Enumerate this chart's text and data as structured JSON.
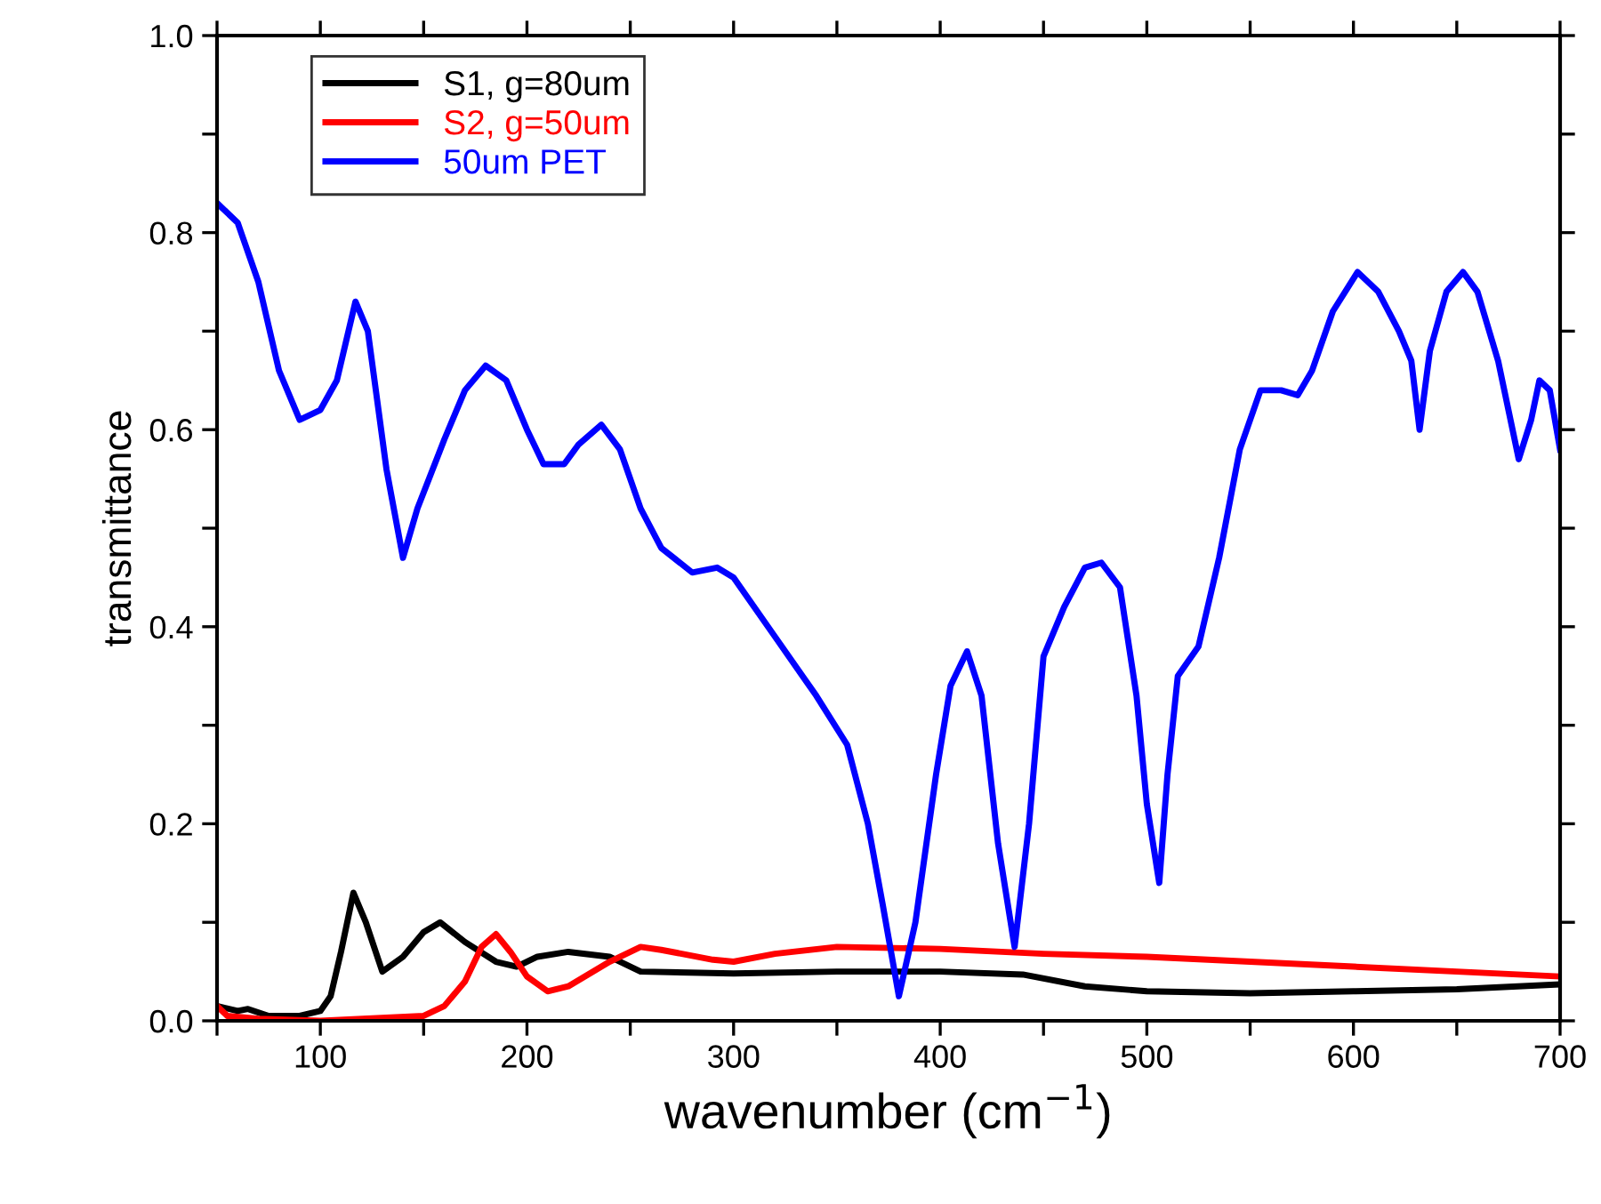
{
  "chart_data": {
    "type": "line",
    "xlabel": "wavenumber (cm$^{−1}$)",
    "ylabel": "transmittance",
    "xlim": [
      50,
      700
    ],
    "ylim": [
      0,
      1.0
    ],
    "xticks": [
      {
        "value": 50,
        "label": null
      },
      100,
      {
        "value": 150,
        "label": null
      },
      200,
      {
        "value": 250,
        "label": null
      },
      300,
      {
        "value": 350,
        "label": null
      },
      400,
      {
        "value": 450,
        "label": null
      },
      500,
      {
        "value": 550,
        "label": null
      },
      600,
      {
        "value": 650,
        "label": null
      },
      700
    ],
    "yticks": [
      {
        "value": 0,
        "label": "0.0"
      },
      {
        "value": 0.1,
        "label": null
      },
      0.2,
      {
        "value": 0.3,
        "label": null
      },
      0.4,
      {
        "value": 0.5,
        "label": null
      },
      0.6,
      {
        "value": 0.7,
        "label": null
      },
      0.8,
      {
        "value": 0.9,
        "label": null
      },
      {
        "value": 1.0,
        "label": "1.0"
      }
    ],
    "grid": false,
    "legend": "top left",
    "marker": "none",
    "line_style": "solid",
    "series": [
      {
        "name": "S1, g=80um",
        "color": "#000000",
        "x": [
          50,
          60,
          65,
          75,
          90,
          100,
          105,
          110,
          116,
          122,
          130,
          140,
          150,
          158,
          170,
          185,
          195,
          205,
          220,
          240,
          255,
          300,
          350,
          400,
          440,
          470,
          500,
          550,
          600,
          650,
          700
        ],
        "values": [
          0.015,
          0.01,
          0.012,
          0.005,
          0.005,
          0.01,
          0.025,
          0.07,
          0.13,
          0.1,
          0.05,
          0.065,
          0.09,
          0.1,
          0.08,
          0.06,
          0.055,
          0.065,
          0.07,
          0.065,
          0.05,
          0.048,
          0.05,
          0.05,
          0.047,
          0.035,
          0.03,
          0.028,
          0.03,
          0.032,
          0.037
        ]
      },
      {
        "name": "S2, g=50um",
        "color": "#ff0000",
        "x": [
          50,
          55,
          70,
          100,
          150,
          160,
          170,
          178,
          185,
          192,
          200,
          210,
          220,
          240,
          255,
          265,
          290,
          300,
          320,
          350,
          400,
          450,
          500,
          550,
          600,
          650,
          700
        ],
        "values": [
          0.015,
          0.005,
          0.002,
          0.0,
          0.005,
          0.015,
          0.04,
          0.075,
          0.088,
          0.07,
          0.045,
          0.03,
          0.035,
          0.06,
          0.075,
          0.072,
          0.062,
          0.06,
          0.068,
          0.075,
          0.073,
          0.068,
          0.065,
          0.06,
          0.055,
          0.05,
          0.045
        ]
      },
      {
        "name": "50um PET",
        "color": "#0000ff",
        "x": [
          50,
          60,
          70,
          80,
          90,
          100,
          108,
          117,
          123,
          132,
          140,
          147,
          160,
          170,
          180,
          190,
          200,
          208,
          218,
          225,
          236,
          245,
          255,
          265,
          280,
          292,
          300,
          320,
          340,
          355,
          365,
          372,
          380,
          388,
          398,
          405,
          413,
          420,
          428,
          436,
          443,
          450,
          460,
          470,
          478,
          487,
          495,
          500,
          506,
          510,
          515,
          525,
          535,
          545,
          555,
          565,
          573,
          580,
          590,
          602,
          612,
          622,
          628,
          632,
          637,
          645,
          653,
          660,
          670,
          680,
          686,
          690,
          695,
          700
        ],
        "values": [
          0.83,
          0.81,
          0.75,
          0.66,
          0.61,
          0.62,
          0.65,
          0.73,
          0.7,
          0.56,
          0.47,
          0.52,
          0.59,
          0.64,
          0.665,
          0.65,
          0.6,
          0.565,
          0.565,
          0.585,
          0.605,
          0.58,
          0.52,
          0.48,
          0.455,
          0.46,
          0.45,
          0.39,
          0.33,
          0.28,
          0.2,
          0.12,
          0.025,
          0.1,
          0.25,
          0.34,
          0.375,
          0.33,
          0.18,
          0.075,
          0.2,
          0.37,
          0.42,
          0.46,
          0.465,
          0.44,
          0.33,
          0.22,
          0.14,
          0.25,
          0.35,
          0.38,
          0.47,
          0.58,
          0.64,
          0.64,
          0.635,
          0.66,
          0.72,
          0.76,
          0.74,
          0.7,
          0.67,
          0.6,
          0.68,
          0.74,
          0.76,
          0.74,
          0.67,
          0.57,
          0.61,
          0.65,
          0.64,
          0.58
        ]
      }
    ]
  }
}
